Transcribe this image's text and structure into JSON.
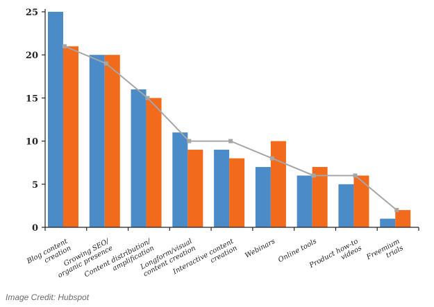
{
  "chart_data": {
    "type": "bar",
    "categories": [
      [
        "Blog content",
        "creation"
      ],
      [
        "Growing SEO/",
        "organic presence"
      ],
      [
        "Content distribution/",
        "amplification"
      ],
      [
        "Longform/visual",
        "content creation"
      ],
      [
        "Interactive content",
        "creation"
      ],
      [
        "Webinars"
      ],
      [
        "Online tools"
      ],
      [
        "Product how-to",
        "videos"
      ],
      [
        "Freemium",
        "trials"
      ]
    ],
    "series": [
      {
        "values": [
          25,
          20,
          16,
          11,
          9,
          7,
          6,
          5,
          1
        ],
        "color": "#4a8bc8",
        "mark": "bar"
      },
      {
        "values": [
          21,
          20,
          15,
          9,
          8,
          10,
          7,
          6,
          2
        ],
        "color": "#f26a1b",
        "mark": "bar"
      },
      {
        "values": [
          21,
          19,
          15,
          10,
          10,
          8,
          6,
          6,
          2
        ],
        "color": "#a6a6a6",
        "mark": "line"
      }
    ],
    "yticks": [
      0,
      5,
      10,
      15,
      20,
      25
    ],
    "ylim": [
      0,
      25
    ],
    "title": "",
    "xlabel": "",
    "ylabel": "",
    "grid": false,
    "legend": "none"
  },
  "credit": "Image Credit: Hubspot"
}
